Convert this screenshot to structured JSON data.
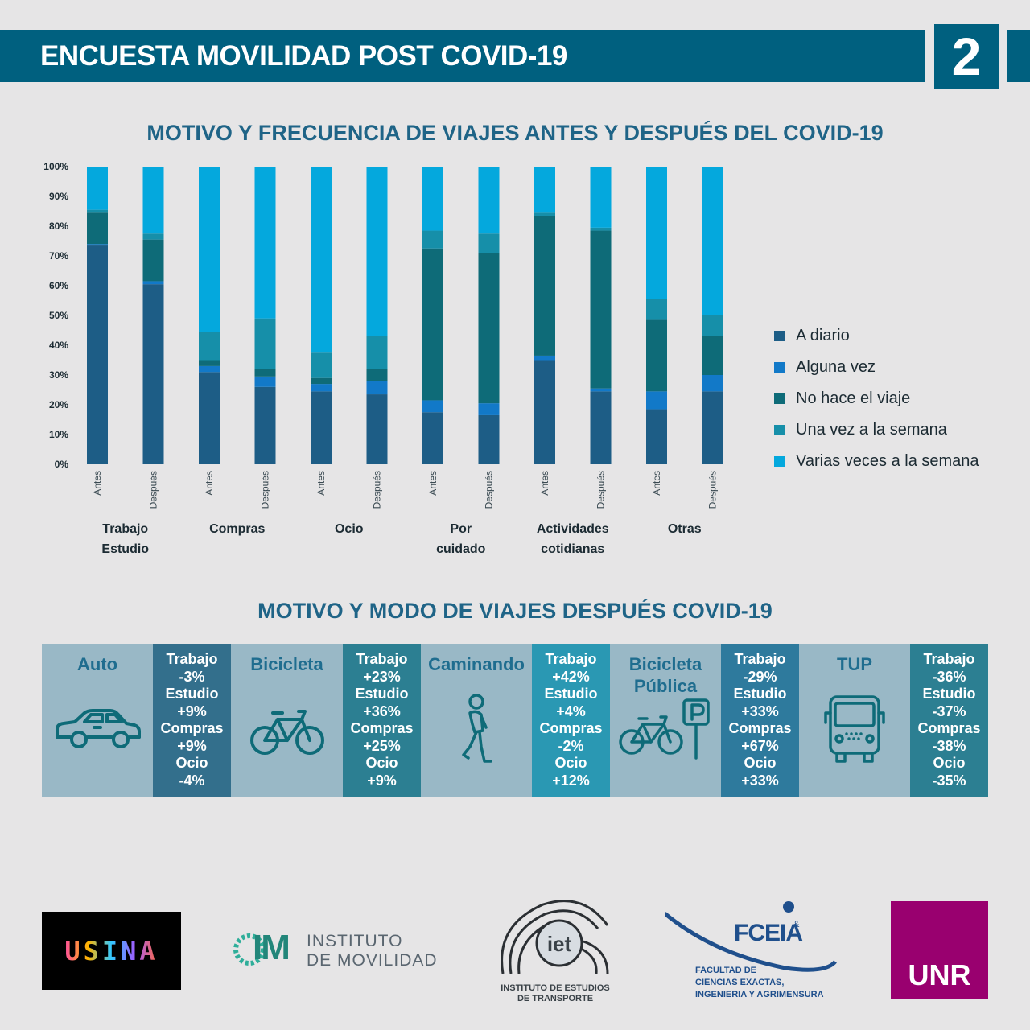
{
  "header": {
    "title": "ENCUESTA MOVILIDAD POST COVID-19",
    "number": "2"
  },
  "section1": {
    "title": "MOTIVO Y FRECUENCIA DE VIAJES ANTES Y DESPUÉS DEL COVID-19"
  },
  "section2": {
    "title": "MOTIVO Y MODO DE VIAJES DESPUÉS COVID-19"
  },
  "chart_data": {
    "type": "bar",
    "stacked": true,
    "ylim": [
      0,
      100
    ],
    "yticks": [
      "0%",
      "10%",
      "20%",
      "30%",
      "40%",
      "50%",
      "60%",
      "70%",
      "80%",
      "90%",
      "100%"
    ],
    "groups": [
      {
        "label": "Trabajo Estudio",
        "lines": [
          "Trabajo",
          "Estudio"
        ]
      },
      {
        "label": "Compras",
        "lines": [
          "Compras"
        ]
      },
      {
        "label": "Ocio",
        "lines": [
          "Ocio"
        ]
      },
      {
        "label": "Por cuidado",
        "lines": [
          "Por",
          "cuidado"
        ]
      },
      {
        "label": "Actividades cotidianas",
        "lines": [
          "Actividades",
          "cotidianas"
        ]
      },
      {
        "label": "Otras",
        "lines": [
          "Otras"
        ]
      }
    ],
    "bar_labels": [
      "Antes",
      "Después",
      "Antes",
      "Después",
      "Antes",
      "Después",
      "Antes",
      "Después",
      "Antes",
      "Después",
      "Antes",
      "Después"
    ],
    "series": [
      {
        "name": "A diario",
        "color": "#1d5d86",
        "values": [
          73.5,
          60.5,
          31,
          26,
          24.5,
          23.5,
          17.5,
          16.5,
          35,
          24.5,
          18.5,
          24.5
        ]
      },
      {
        "name": "Alguna vez",
        "color": "#1279c8",
        "values": [
          0.5,
          1,
          2,
          3.5,
          2.5,
          4.5,
          4,
          4,
          1.5,
          1,
          6,
          5.5
        ]
      },
      {
        "name": "No hace el viaje",
        "color": "#0e6b78",
        "values": [
          10.5,
          14,
          2,
          2.5,
          2,
          4,
          51,
          50.5,
          47,
          53,
          24,
          13
        ]
      },
      {
        "name": "Una vez a la semana",
        "color": "#168fa9",
        "values": [
          1,
          2,
          9.5,
          17,
          8.5,
          11,
          6,
          6.5,
          1,
          1,
          7,
          7
        ]
      },
      {
        "name": "Varias veces a la semana",
        "color": "#04a8dd",
        "values": [
          14.5,
          22.5,
          55.5,
          51,
          62.5,
          57,
          21.5,
          22.5,
          15.5,
          20.5,
          44.5,
          50
        ]
      }
    ]
  },
  "modes": [
    {
      "name": "Auto",
      "icon": "car-icon",
      "stats": [
        "Trabajo",
        "-3%",
        "Estudio",
        "+9%",
        "Compras",
        "+9%",
        "Ocio",
        "-4%"
      ],
      "stat_color": "#336f8c"
    },
    {
      "name": "Bicicleta",
      "icon": "bicycle-icon",
      "stats": [
        "Trabajo",
        "+23%",
        "Estudio",
        "+36%",
        "Compras",
        "+25%",
        "Ocio",
        "+9%"
      ],
      "stat_color": "#2c7f92"
    },
    {
      "name": "Caminando",
      "icon": "walking-person-icon",
      "stats": [
        "Trabajo",
        "+42%",
        "Estudio",
        "+4%",
        "Compras",
        "-2%",
        "Ocio",
        "+12%"
      ],
      "stat_color": "#2a98b3"
    },
    {
      "name": "Bicicleta Pública",
      "name_lines": [
        "Bicicleta",
        "Pública"
      ],
      "icon": "public-bike-parking-icon",
      "stats": [
        "Trabajo",
        "-29%",
        "Estudio",
        "+33%",
        "Compras",
        "+67%",
        "Ocio",
        "+33%"
      ],
      "stat_color": "#2e7a9d"
    },
    {
      "name": "TUP",
      "icon": "bus-icon",
      "stats": [
        "Trabajo",
        "-36%",
        "Estudio",
        "-37%",
        "Compras",
        "-38%",
        "Ocio",
        "-35%"
      ],
      "stat_color": "#2c7f92"
    }
  ],
  "logos": {
    "usina": "USINA",
    "im": {
      "mark": "IM",
      "line1": "INSTITUTO",
      "line2": "DE MOVILIDAD"
    },
    "iet": {
      "mark": "iet",
      "line1": "INSTITUTO DE ESTUDIOS",
      "line2": "DE TRANSPORTE"
    },
    "fceia": {
      "mark": "FCEIA",
      "sup": "&",
      "line1": "FACULTAD DE",
      "line2": "CIENCIAS EXACTAS,",
      "line3": "INGENIERIA Y AGRIMENSURA"
    },
    "unr": "UNR"
  },
  "colors": {
    "header_bg": "#00607f",
    "page_bg": "#e6e5e6",
    "mode_bg": "#99b8c6",
    "title": "#1f6487",
    "unr_bg": "#99006f"
  }
}
